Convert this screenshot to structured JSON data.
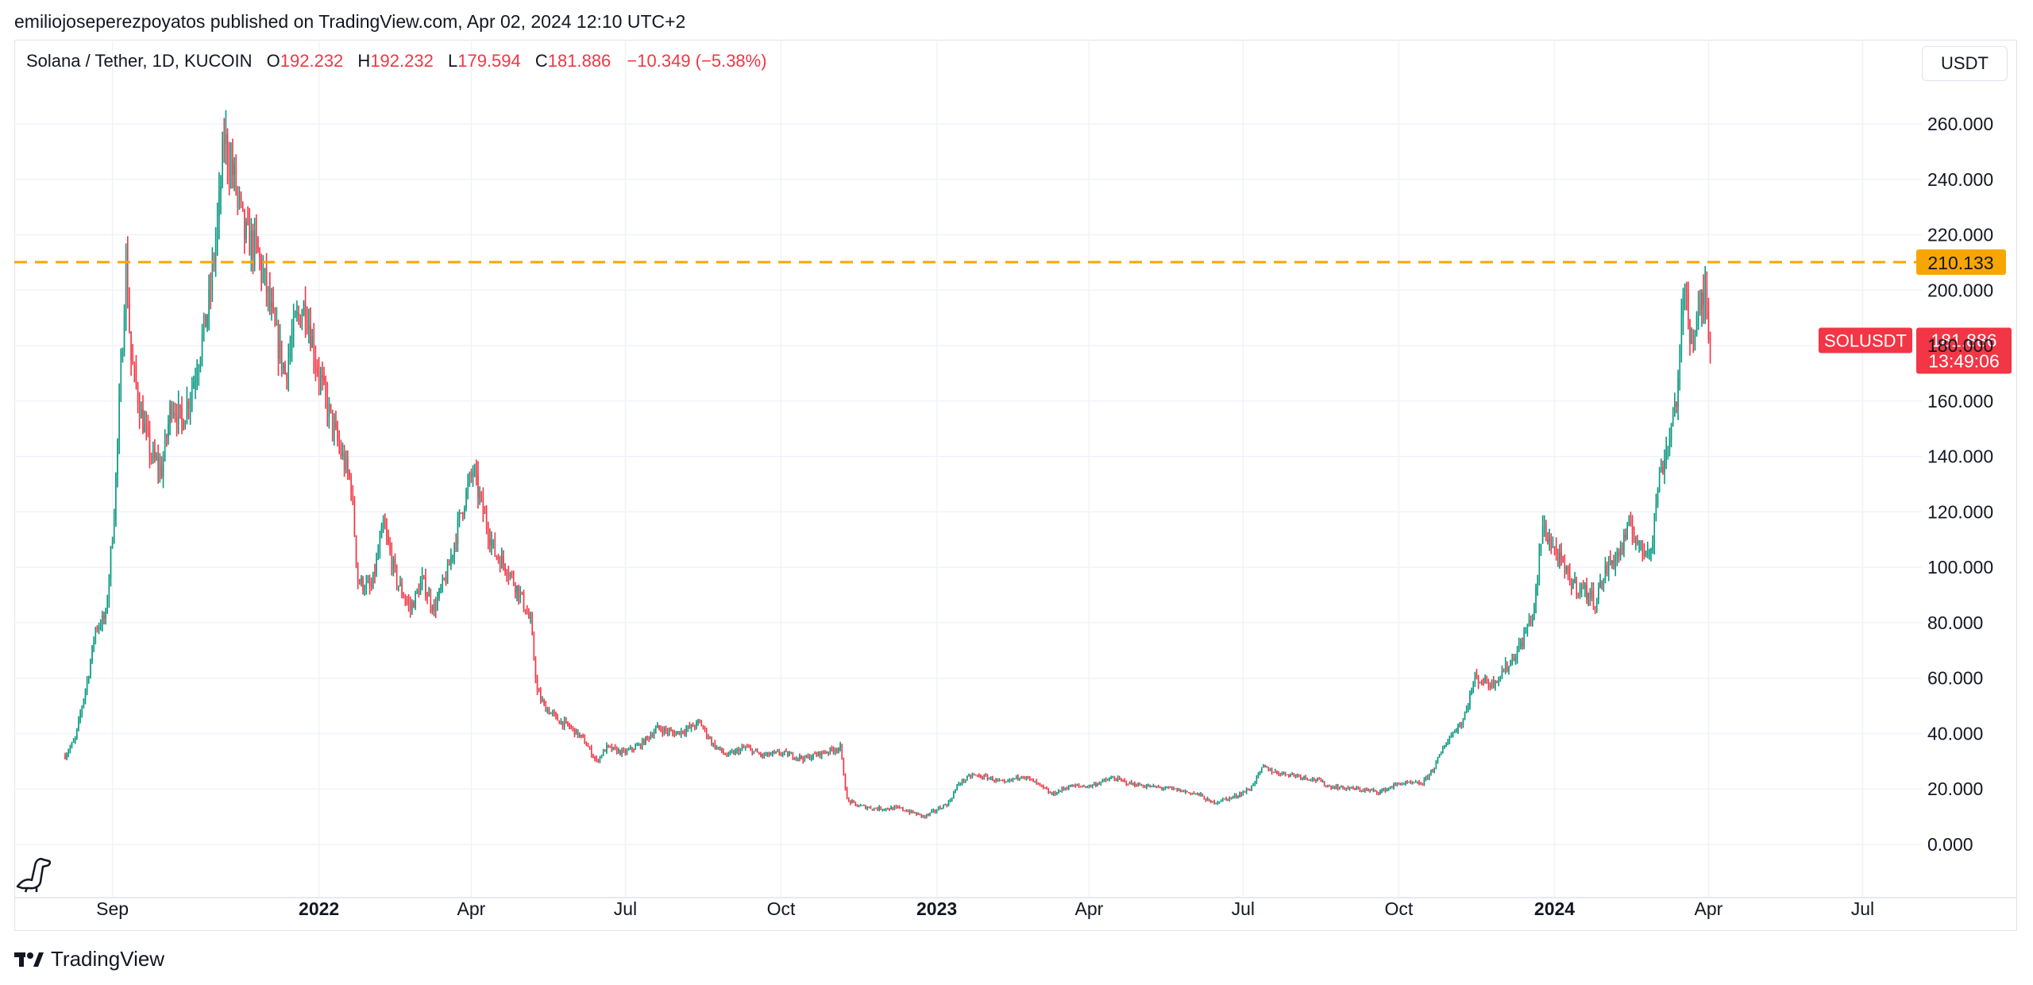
{
  "header": {
    "publisher_line": "emiliojoseperezpoyatos published on TradingView.com, Apr 02, 2024 12:10 UTC+2"
  },
  "legend": {
    "symbol": "Solana / Tether, 1D, KUCOIN",
    "o_label": "O",
    "o_value": "192.232",
    "h_label": "H",
    "h_value": "192.232",
    "l_label": "L",
    "l_value": "179.594",
    "c_label": "C",
    "c_value": "181.886",
    "change": "−10.349 (−5.38%)"
  },
  "toolbar": {
    "currency": "USDT"
  },
  "footer": {
    "brand": "TradingView"
  },
  "colors": {
    "up": "#089981",
    "down": "#f23645",
    "level": "#f7a600",
    "grid": "#f0f3fa"
  },
  "chart_data": {
    "type": "candlestick",
    "title": "Solana / Tether, 1D, KUCOIN",
    "ylim": [
      -10,
      270
    ],
    "y_ticks": [
      "0.000",
      "20.000",
      "40.000",
      "60.000",
      "80.000",
      "100.000",
      "120.000",
      "140.000",
      "160.000",
      "180.000",
      "200.000",
      "220.000",
      "240.000",
      "260.000"
    ],
    "y_tick_values": [
      0,
      20,
      40,
      60,
      80,
      100,
      120,
      140,
      160,
      180,
      200,
      220,
      240,
      260
    ],
    "x_range": [
      "2021-07-05",
      "2024-08-05"
    ],
    "x_ticks": [
      {
        "label": "Sep",
        "date": "2021-09-01",
        "bold": false
      },
      {
        "label": "2022",
        "date": "2022-01-01",
        "bold": true
      },
      {
        "label": "Apr",
        "date": "2022-04-01",
        "bold": false
      },
      {
        "label": "Jul",
        "date": "2022-07-01",
        "bold": false
      },
      {
        "label": "Oct",
        "date": "2022-10-01",
        "bold": false
      },
      {
        "label": "2023",
        "date": "2023-01-01",
        "bold": true
      },
      {
        "label": "Apr",
        "date": "2023-04-01",
        "bold": false
      },
      {
        "label": "Jul",
        "date": "2023-07-01",
        "bold": false
      },
      {
        "label": "Oct",
        "date": "2023-10-01",
        "bold": false
      },
      {
        "label": "2024",
        "date": "2024-01-01",
        "bold": true
      },
      {
        "label": "Apr",
        "date": "2024-04-01",
        "bold": false
      },
      {
        "label": "Jul",
        "date": "2024-07-01",
        "bold": false
      }
    ],
    "grid": true,
    "horizontal_level": {
      "value": 210.133,
      "label": "210.133",
      "style": "dashed"
    },
    "last_price": {
      "symbol": "SOLUSDT",
      "value": 181.886,
      "label": "181.886",
      "countdown": "13:49:06"
    },
    "price_path": [
      [
        "2021-08-04",
        32
      ],
      [
        "2021-08-10",
        38
      ],
      [
        "2021-08-18",
        62
      ],
      [
        "2021-08-22",
        78
      ],
      [
        "2021-08-28",
        82
      ],
      [
        "2021-09-02",
        120
      ],
      [
        "2021-09-06",
        170
      ],
      [
        "2021-09-09",
        210
      ],
      [
        "2021-09-12",
        175
      ],
      [
        "2021-09-18",
        155
      ],
      [
        "2021-09-24",
        140
      ],
      [
        "2021-09-30",
        135
      ],
      [
        "2021-10-06",
        160
      ],
      [
        "2021-10-12",
        152
      ],
      [
        "2021-10-20",
        170
      ],
      [
        "2021-10-28",
        195
      ],
      [
        "2021-11-03",
        230
      ],
      [
        "2021-11-06",
        255
      ],
      [
        "2021-11-12",
        240
      ],
      [
        "2021-11-18",
        220
      ],
      [
        "2021-11-25",
        215
      ],
      [
        "2021-12-01",
        200
      ],
      [
        "2021-12-06",
        185
      ],
      [
        "2021-12-12",
        170
      ],
      [
        "2021-12-18",
        188
      ],
      [
        "2021-12-24",
        195
      ],
      [
        "2021-12-30",
        175
      ],
      [
        "2022-01-05",
        160
      ],
      [
        "2022-01-12",
        145
      ],
      [
        "2022-01-20",
        130
      ],
      [
        "2022-01-24",
        95
      ],
      [
        "2022-02-01",
        92
      ],
      [
        "2022-02-08",
        115
      ],
      [
        "2022-02-16",
        95
      ],
      [
        "2022-02-24",
        85
      ],
      [
        "2022-03-03",
        95
      ],
      [
        "2022-03-10",
        85
      ],
      [
        "2022-03-18",
        98
      ],
      [
        "2022-03-26",
        120
      ],
      [
        "2022-04-02",
        135
      ],
      [
        "2022-04-08",
        120
      ],
      [
        "2022-04-15",
        105
      ],
      [
        "2022-04-22",
        100
      ],
      [
        "2022-04-30",
        90
      ],
      [
        "2022-05-06",
        80
      ],
      [
        "2022-05-10",
        55
      ],
      [
        "2022-05-14",
        50
      ],
      [
        "2022-05-22",
        45
      ],
      [
        "2022-05-30",
        42
      ],
      [
        "2022-06-06",
        38
      ],
      [
        "2022-06-14",
        30
      ],
      [
        "2022-06-20",
        35
      ],
      [
        "2022-06-30",
        33
      ],
      [
        "2022-07-10",
        36
      ],
      [
        "2022-07-20",
        42
      ],
      [
        "2022-07-30",
        40
      ],
      [
        "2022-08-08",
        42
      ],
      [
        "2022-08-14",
        44
      ],
      [
        "2022-08-22",
        36
      ],
      [
        "2022-08-30",
        32
      ],
      [
        "2022-09-10",
        35
      ],
      [
        "2022-09-20",
        32
      ],
      [
        "2022-10-01",
        33
      ],
      [
        "2022-10-15",
        31
      ],
      [
        "2022-10-25",
        33
      ],
      [
        "2022-11-05",
        35
      ],
      [
        "2022-11-09",
        16
      ],
      [
        "2022-11-15",
        14
      ],
      [
        "2022-11-25",
        13
      ],
      [
        "2022-12-10",
        13
      ],
      [
        "2022-12-25",
        10
      ],
      [
        "2023-01-08",
        15
      ],
      [
        "2023-01-14",
        22
      ],
      [
        "2023-01-22",
        25
      ],
      [
        "2023-02-01",
        24
      ],
      [
        "2023-02-10",
        22
      ],
      [
        "2023-02-20",
        25
      ],
      [
        "2023-03-01",
        22
      ],
      [
        "2023-03-10",
        18
      ],
      [
        "2023-03-20",
        21
      ],
      [
        "2023-04-01",
        21
      ],
      [
        "2023-04-15",
        24
      ],
      [
        "2023-04-25",
        22
      ],
      [
        "2023-05-05",
        21
      ],
      [
        "2023-05-20",
        20
      ],
      [
        "2023-06-05",
        18
      ],
      [
        "2023-06-12",
        15
      ],
      [
        "2023-06-25",
        17
      ],
      [
        "2023-07-05",
        20
      ],
      [
        "2023-07-13",
        28
      ],
      [
        "2023-07-20",
        26
      ],
      [
        "2023-08-01",
        25
      ],
      [
        "2023-08-15",
        23
      ],
      [
        "2023-08-20",
        21
      ],
      [
        "2023-09-05",
        20
      ],
      [
        "2023-09-20",
        19
      ],
      [
        "2023-10-01",
        22
      ],
      [
        "2023-10-15",
        22
      ],
      [
        "2023-10-22",
        28
      ],
      [
        "2023-10-30",
        38
      ],
      [
        "2023-11-08",
        45
      ],
      [
        "2023-11-15",
        60
      ],
      [
        "2023-11-25",
        58
      ],
      [
        "2023-12-05",
        65
      ],
      [
        "2023-12-12",
        72
      ],
      [
        "2023-12-20",
        85
      ],
      [
        "2023-12-25",
        115
      ],
      [
        "2024-01-02",
        105
      ],
      [
        "2024-01-10",
        95
      ],
      [
        "2024-01-18",
        92
      ],
      [
        "2024-01-25",
        88
      ],
      [
        "2024-02-01",
        100
      ],
      [
        "2024-02-08",
        105
      ],
      [
        "2024-02-15",
        115
      ],
      [
        "2024-02-22",
        105
      ],
      [
        "2024-02-28",
        110
      ],
      [
        "2024-03-02",
        130
      ],
      [
        "2024-03-08",
        145
      ],
      [
        "2024-03-14",
        165
      ],
      [
        "2024-03-18",
        205
      ],
      [
        "2024-03-22",
        180
      ],
      [
        "2024-03-26",
        190
      ],
      [
        "2024-03-30",
        200
      ],
      [
        "2024-04-02",
        182
      ]
    ]
  }
}
